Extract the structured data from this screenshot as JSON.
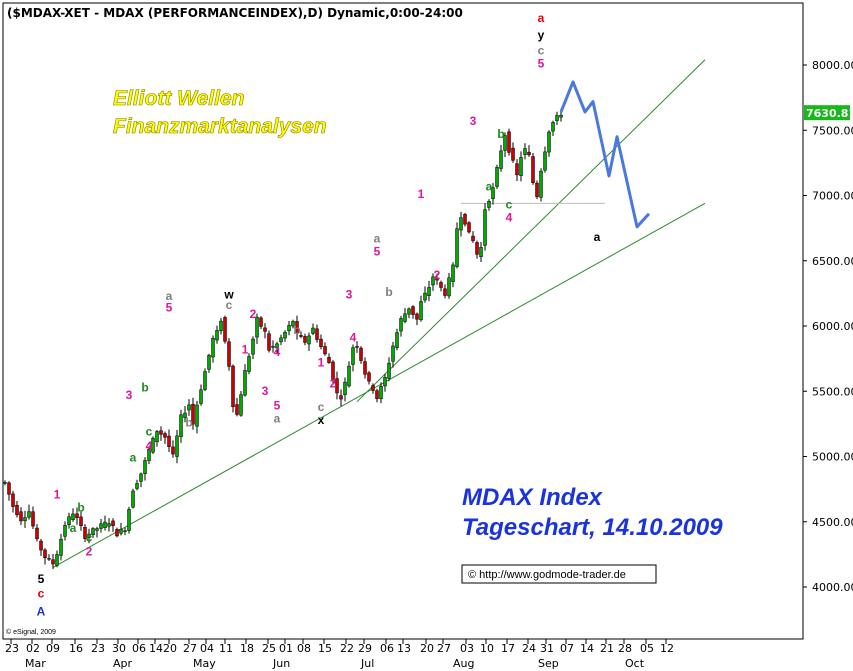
{
  "chart_data": {
    "type": "candlestick",
    "title": "($MDAX-XET - MDAX (PERFORMANCEINDEX),D) Dynamic,0:00-24:00",
    "last_price": "7630.81",
    "ylim": [
      3650,
      8450
    ],
    "yticks": [
      "8000.00",
      "7500.00",
      "7000.00",
      "6500.00",
      "6000.00",
      "5500.00",
      "5000.00",
      "4500.00",
      "4000.00"
    ],
    "x_day_labels": [
      "23",
      "02",
      "09",
      "16",
      "23",
      "30",
      "06",
      "14",
      "20",
      "27",
      "04",
      "11",
      "18",
      "25",
      "01",
      "08",
      "15",
      "22",
      "29",
      "06",
      "13",
      "20",
      "27",
      "03",
      "10",
      "17",
      "24",
      "31",
      "07",
      "14",
      "21",
      "28",
      "05",
      "12"
    ],
    "x_month_labels": [
      "Mar",
      "Apr",
      "May",
      "Jun",
      "Jul",
      "Aug",
      "Sep",
      "Oct"
    ],
    "total_days": 166,
    "price_path": [
      [
        0,
        4800
      ],
      [
        2,
        4620
      ],
      [
        4,
        4520
      ],
      [
        6,
        4580
      ],
      [
        8,
        4350
      ],
      [
        10,
        4230
      ],
      [
        12,
        4180
      ],
      [
        13,
        4260
      ],
      [
        15,
        4480
      ],
      [
        17,
        4570
      ],
      [
        18,
        4520
      ],
      [
        20,
        4390
      ],
      [
        22,
        4430
      ],
      [
        24,
        4470
      ],
      [
        26,
        4500
      ],
      [
        28,
        4410
      ],
      [
        30,
        4450
      ],
      [
        32,
        4750
      ],
      [
        34,
        4870
      ],
      [
        36,
        5050
      ],
      [
        38,
        5200
      ],
      [
        40,
        5150
      ],
      [
        42,
        5000
      ],
      [
        44,
        5300
      ],
      [
        46,
        5400
      ],
      [
        47,
        5250
      ],
      [
        48,
        5400
      ],
      [
        50,
        5650
      ],
      [
        52,
        5900
      ],
      [
        53,
        5950
      ],
      [
        54,
        6050
      ],
      [
        55,
        5880
      ],
      [
        56,
        5700
      ],
      [
        57,
        5400
      ],
      [
        58,
        5320
      ],
      [
        60,
        5650
      ],
      [
        62,
        5900
      ],
      [
        63,
        6050
      ],
      [
        65,
        5950
      ],
      [
        66,
        5820
      ],
      [
        68,
        5860
      ],
      [
        70,
        5950
      ],
      [
        72,
        6040
      ],
      [
        73,
        5930
      ],
      [
        75,
        5880
      ],
      [
        77,
        5980
      ],
      [
        79,
        5840
      ],
      [
        81,
        5720
      ],
      [
        82,
        5600
      ],
      [
        83,
        5480
      ],
      [
        84,
        5460
      ],
      [
        85,
        5560
      ],
      [
        86,
        5700
      ],
      [
        87,
        5840
      ],
      [
        88,
        5850
      ],
      [
        90,
        5640
      ],
      [
        91,
        5560
      ],
      [
        92,
        5520
      ],
      [
        93,
        5450
      ],
      [
        95,
        5600
      ],
      [
        97,
        5850
      ],
      [
        99,
        6050
      ],
      [
        101,
        6140
      ],
      [
        103,
        6050
      ],
      [
        104,
        6180
      ],
      [
        106,
        6300
      ],
      [
        107,
        6380
      ],
      [
        108,
        6340
      ],
      [
        109,
        6290
      ],
      [
        110,
        6250
      ],
      [
        112,
        6450
      ],
      [
        113,
        6750
      ],
      [
        114,
        6850
      ],
      [
        115,
        6800
      ],
      [
        116,
        6700
      ],
      [
        117,
        6650
      ],
      [
        118,
        6550
      ],
      [
        119,
        6600
      ],
      [
        120,
        6900
      ],
      [
        122,
        7050
      ],
      [
        123,
        7200
      ],
      [
        124,
        7350
      ],
      [
        125,
        7470
      ],
      [
        126,
        7350
      ],
      [
        127,
        7250
      ],
      [
        128,
        7150
      ],
      [
        129,
        7300
      ],
      [
        130,
        7350
      ],
      [
        131,
        7300
      ],
      [
        132,
        7100
      ],
      [
        133,
        7000
      ],
      [
        134,
        7200
      ],
      [
        135,
        7350
      ],
      [
        136,
        7500
      ],
      [
        137,
        7560
      ],
      [
        139,
        7630
      ]
    ],
    "up_color": "#00aa00",
    "down_color": "#cc0000",
    "trendlines": [
      {
        "color": "#2a8a2a",
        "from": [
          12,
          4150
        ],
        "to": [
          175,
          6940
        ]
      },
      {
        "color": "#2a8a2a",
        "from": [
          88,
          5420
        ],
        "to": [
          175,
          8040
        ]
      }
    ],
    "hline": {
      "color": "#bdbdbd",
      "y": 6940,
      "from_day": 114,
      "to_day": 150
    },
    "projection": {
      "color": "#4a78dc",
      "points": [
        [
          139,
          7640
        ],
        [
          142,
          7870
        ],
        [
          145,
          7640
        ],
        [
          147,
          7720
        ],
        [
          151,
          7150
        ],
        [
          153,
          7450
        ],
        [
          158,
          6760
        ],
        [
          161,
          6860
        ]
      ]
    },
    "annotations": [
      {
        "text": "1",
        "day": 13,
        "price": 4680,
        "color": "#e0169b"
      },
      {
        "text": "b",
        "day": 19,
        "price": 4580,
        "color": "#1a8a1a"
      },
      {
        "text": "a",
        "day": 17,
        "price": 4420,
        "color": "#1a8a1a"
      },
      {
        "text": "c",
        "day": 21,
        "price": 4350,
        "color": "#1a8a1a"
      },
      {
        "text": "2",
        "day": 21,
        "price": 4240,
        "color": "#e0169b"
      },
      {
        "text": "5",
        "day": 9,
        "price": 4030,
        "color": "#000000",
        "size": 16
      },
      {
        "text": "c",
        "day": 9,
        "price": 3920,
        "color": "#e00000",
        "size": 16
      },
      {
        "text": "A",
        "day": 9,
        "price": 3780,
        "color": "#1a33dd",
        "size": 22
      },
      {
        "text": "3",
        "day": 31,
        "price": 5440,
        "color": "#e0169b"
      },
      {
        "text": "b",
        "day": 35,
        "price": 5500,
        "color": "#1a8a1a"
      },
      {
        "text": "a",
        "day": 32,
        "price": 4960,
        "color": "#1a8a1a"
      },
      {
        "text": "c",
        "day": 36,
        "price": 5160,
        "color": "#1a8a1a"
      },
      {
        "text": "4",
        "day": 36,
        "price": 5050,
        "color": "#e0169b"
      },
      {
        "text": "a",
        "day": 41,
        "price": 6200,
        "color": "#808080"
      },
      {
        "text": "5",
        "day": 41,
        "price": 6110,
        "color": "#e0169b"
      },
      {
        "text": "b",
        "day": 46,
        "price": 5230,
        "color": "#808080"
      },
      {
        "text": "w",
        "day": 56,
        "price": 6210,
        "color": "#000000",
        "size": 15
      },
      {
        "text": "c",
        "day": 56,
        "price": 6130,
        "color": "#808080"
      },
      {
        "text": "2",
        "day": 62,
        "price": 6060,
        "color": "#e0169b"
      },
      {
        "text": "1",
        "day": 60,
        "price": 5790,
        "color": "#e0169b"
      },
      {
        "text": "4",
        "day": 68,
        "price": 5770,
        "color": "#e0169b"
      },
      {
        "text": "3",
        "day": 65,
        "price": 5470,
        "color": "#e0169b"
      },
      {
        "text": "5",
        "day": 68,
        "price": 5360,
        "color": "#e0169b"
      },
      {
        "text": "a",
        "day": 68,
        "price": 5260,
        "color": "#808080"
      },
      {
        "text": "b",
        "day": 73,
        "price": 5940,
        "color": "#808080"
      },
      {
        "text": "1",
        "day": 79,
        "price": 5690,
        "color": "#e0169b"
      },
      {
        "text": "2",
        "day": 82,
        "price": 5530,
        "color": "#e0169b"
      },
      {
        "text": "c",
        "day": 79,
        "price": 5350,
        "color": "#808080"
      },
      {
        "text": "x",
        "day": 79,
        "price": 5250,
        "color": "#000000",
        "size": 16
      },
      {
        "text": "3",
        "day": 86,
        "price": 6210,
        "color": "#e0169b"
      },
      {
        "text": "4",
        "day": 87,
        "price": 5880,
        "color": "#e0169b"
      },
      {
        "text": "a",
        "day": 93,
        "price": 6640,
        "color": "#808080"
      },
      {
        "text": "5",
        "day": 93,
        "price": 6540,
        "color": "#e0169b"
      },
      {
        "text": "b",
        "day": 96,
        "price": 6230,
        "color": "#808080"
      },
      {
        "text": "1",
        "day": 104,
        "price": 6980,
        "color": "#e0169b"
      },
      {
        "text": "2",
        "day": 108,
        "price": 6360,
        "color": "#e0169b"
      },
      {
        "text": "3",
        "day": 117,
        "price": 7540,
        "color": "#e0169b"
      },
      {
        "text": "a",
        "day": 121,
        "price": 7040,
        "color": "#1a8a1a"
      },
      {
        "text": "b",
        "day": 124,
        "price": 7440,
        "color": "#1a8a1a"
      },
      {
        "text": "c",
        "day": 126,
        "price": 6900,
        "color": "#1a8a1a"
      },
      {
        "text": "4",
        "day": 126,
        "price": 6800,
        "color": "#e0169b"
      },
      {
        "text": "a",
        "day": 134,
        "price": 8330,
        "color": "#e00000",
        "size": 17
      },
      {
        "text": "y",
        "day": 134,
        "price": 8200,
        "color": "#000000",
        "size": 17
      },
      {
        "text": "c",
        "day": 134,
        "price": 8080,
        "color": "#808080"
      },
      {
        "text": "5",
        "day": 134,
        "price": 7980,
        "color": "#e0169b"
      },
      {
        "text": "a",
        "day": 148,
        "price": 6650,
        "color": "#000000",
        "size": 16
      }
    ]
  },
  "overlay": {
    "brand_line1": "Elliott Wellen",
    "brand_line2": "Finanzmarktanalysen",
    "caption_line1": "MDAX Index",
    "caption_line2": "Tageschart, 14.10.2009",
    "copyright_url": "© http://www.godmode-trader.de",
    "esignal": "© eSignal, 2009"
  }
}
